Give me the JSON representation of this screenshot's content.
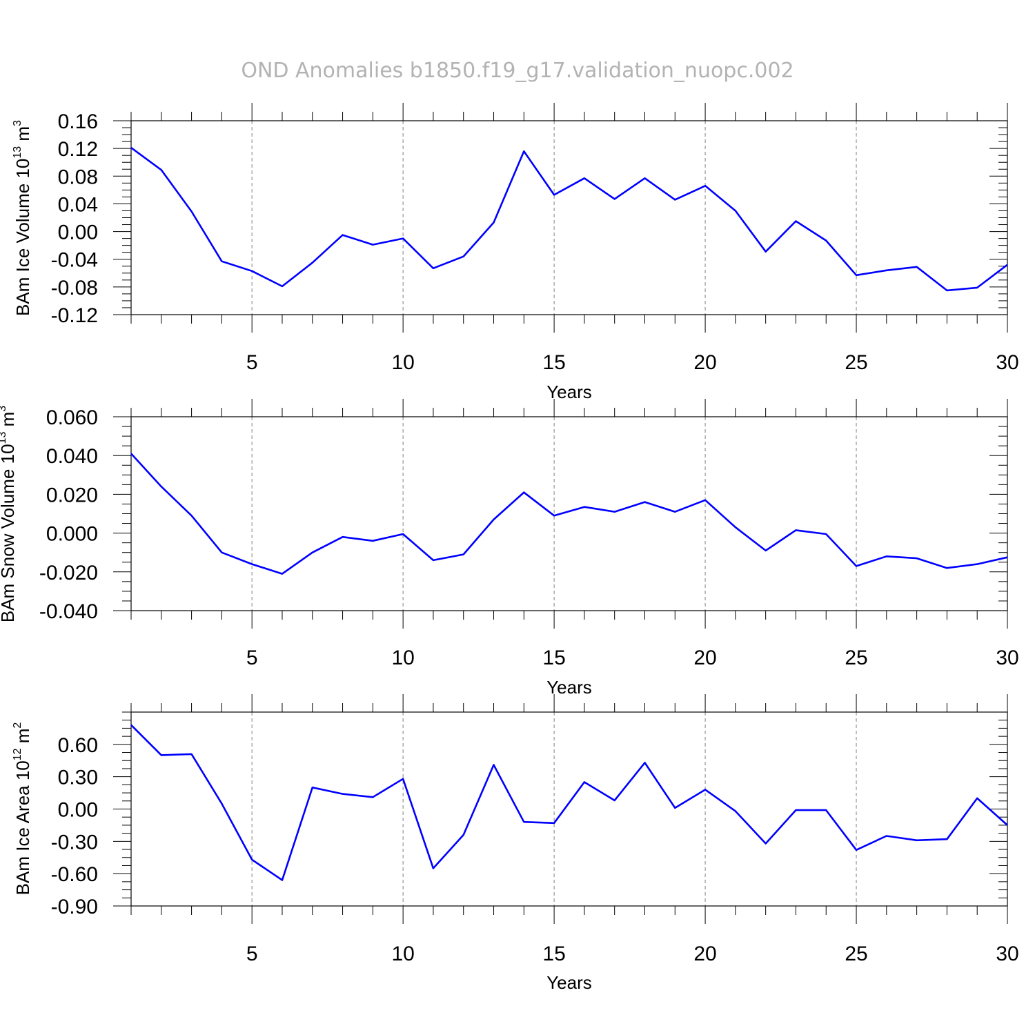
{
  "title": "OND Anomalies b1850.f19_g17.validation_nuopc.002",
  "line_color": "#0000ff",
  "chart_data": [
    {
      "type": "line",
      "xlabel": "Years",
      "ylabel": {
        "prefix": "BAm Ice Volume 10",
        "exp": "13",
        "mid": " m",
        "unit_exp": "3"
      },
      "xlim": [
        1,
        30
      ],
      "ylim": [
        -0.12,
        0.16
      ],
      "grid": "vertical-dashed",
      "x_ticks": [
        "5",
        "10",
        "15",
        "20",
        "25",
        "30"
      ],
      "y_ticks": [
        "0.16",
        "0.12",
        "0.08",
        "0.04",
        "0.00",
        "-0.04",
        "-0.08",
        "-0.12"
      ],
      "series": [
        {
          "x": [
            1,
            2,
            3,
            4,
            5,
            6,
            7,
            8,
            9,
            10,
            11,
            12,
            13,
            14,
            15,
            16,
            17,
            18,
            19,
            20,
            21,
            22,
            23,
            24,
            25,
            26,
            27,
            28,
            29,
            30
          ],
          "values": [
            0.121,
            0.089,
            0.029,
            -0.043,
            -0.057,
            -0.079,
            -0.045,
            -0.005,
            -0.019,
            -0.01,
            -0.053,
            -0.036,
            0.013,
            0.116,
            0.053,
            0.077,
            0.047,
            0.077,
            0.046,
            0.066,
            0.03,
            -0.029,
            0.015,
            -0.013,
            -0.063,
            -0.056,
            -0.051,
            -0.085,
            -0.081,
            -0.048
          ]
        }
      ]
    },
    {
      "type": "line",
      "xlabel": "Years",
      "ylabel": {
        "prefix": "BAm Snow Volume 10",
        "exp": "13",
        "mid": " m",
        "unit_exp": "3"
      },
      "xlim": [
        1,
        30
      ],
      "ylim": [
        -0.04,
        0.06
      ],
      "grid": "vertical-dashed",
      "x_ticks": [
        "5",
        "10",
        "15",
        "20",
        "25",
        "30"
      ],
      "y_ticks": [
        "0.060",
        "0.040",
        "0.020",
        "0.000",
        "-0.020",
        "-0.040"
      ],
      "series": [
        {
          "x": [
            1,
            2,
            3,
            4,
            5,
            6,
            7,
            8,
            9,
            10,
            11,
            12,
            13,
            14,
            15,
            16,
            17,
            18,
            19,
            20,
            21,
            22,
            23,
            24,
            25,
            26,
            27,
            28,
            29,
            30
          ],
          "values": [
            0.041,
            0.024,
            0.009,
            -0.01,
            -0.016,
            -0.021,
            -0.01,
            -0.002,
            -0.004,
            -0.0005,
            -0.014,
            -0.011,
            0.007,
            0.021,
            0.009,
            0.0135,
            0.011,
            0.016,
            0.011,
            0.017,
            0.003,
            -0.009,
            0.0015,
            -0.0005,
            -0.017,
            -0.012,
            -0.013,
            -0.018,
            -0.016,
            -0.0125
          ]
        }
      ]
    },
    {
      "type": "line",
      "xlabel": "Years",
      "ylabel": {
        "prefix": "BAm Ice Area 10",
        "exp": "12",
        "mid": " m",
        "unit_exp": "2"
      },
      "xlim": [
        1,
        30
      ],
      "ylim": [
        -0.9,
        0.9
      ],
      "grid": "vertical-dashed",
      "x_ticks": [
        "5",
        "10",
        "15",
        "20",
        "25",
        "30"
      ],
      "y_ticks": [
        "0.60",
        "0.30",
        "0.00",
        "-0.30",
        "-0.60",
        "-0.90"
      ],
      "series": [
        {
          "x": [
            1,
            2,
            3,
            4,
            5,
            6,
            7,
            8,
            9,
            10,
            11,
            12,
            13,
            14,
            15,
            16,
            17,
            18,
            19,
            20,
            21,
            22,
            23,
            24,
            25,
            26,
            27,
            28,
            29,
            30
          ],
          "values": [
            0.78,
            0.5,
            0.51,
            0.05,
            -0.47,
            -0.66,
            0.2,
            0.14,
            0.11,
            0.28,
            -0.55,
            -0.24,
            0.41,
            -0.12,
            -0.13,
            0.25,
            0.08,
            0.43,
            0.01,
            0.18,
            -0.02,
            -0.32,
            -0.01,
            -0.01,
            -0.38,
            -0.25,
            -0.29,
            -0.28,
            0.1,
            -0.15
          ]
        }
      ]
    }
  ]
}
